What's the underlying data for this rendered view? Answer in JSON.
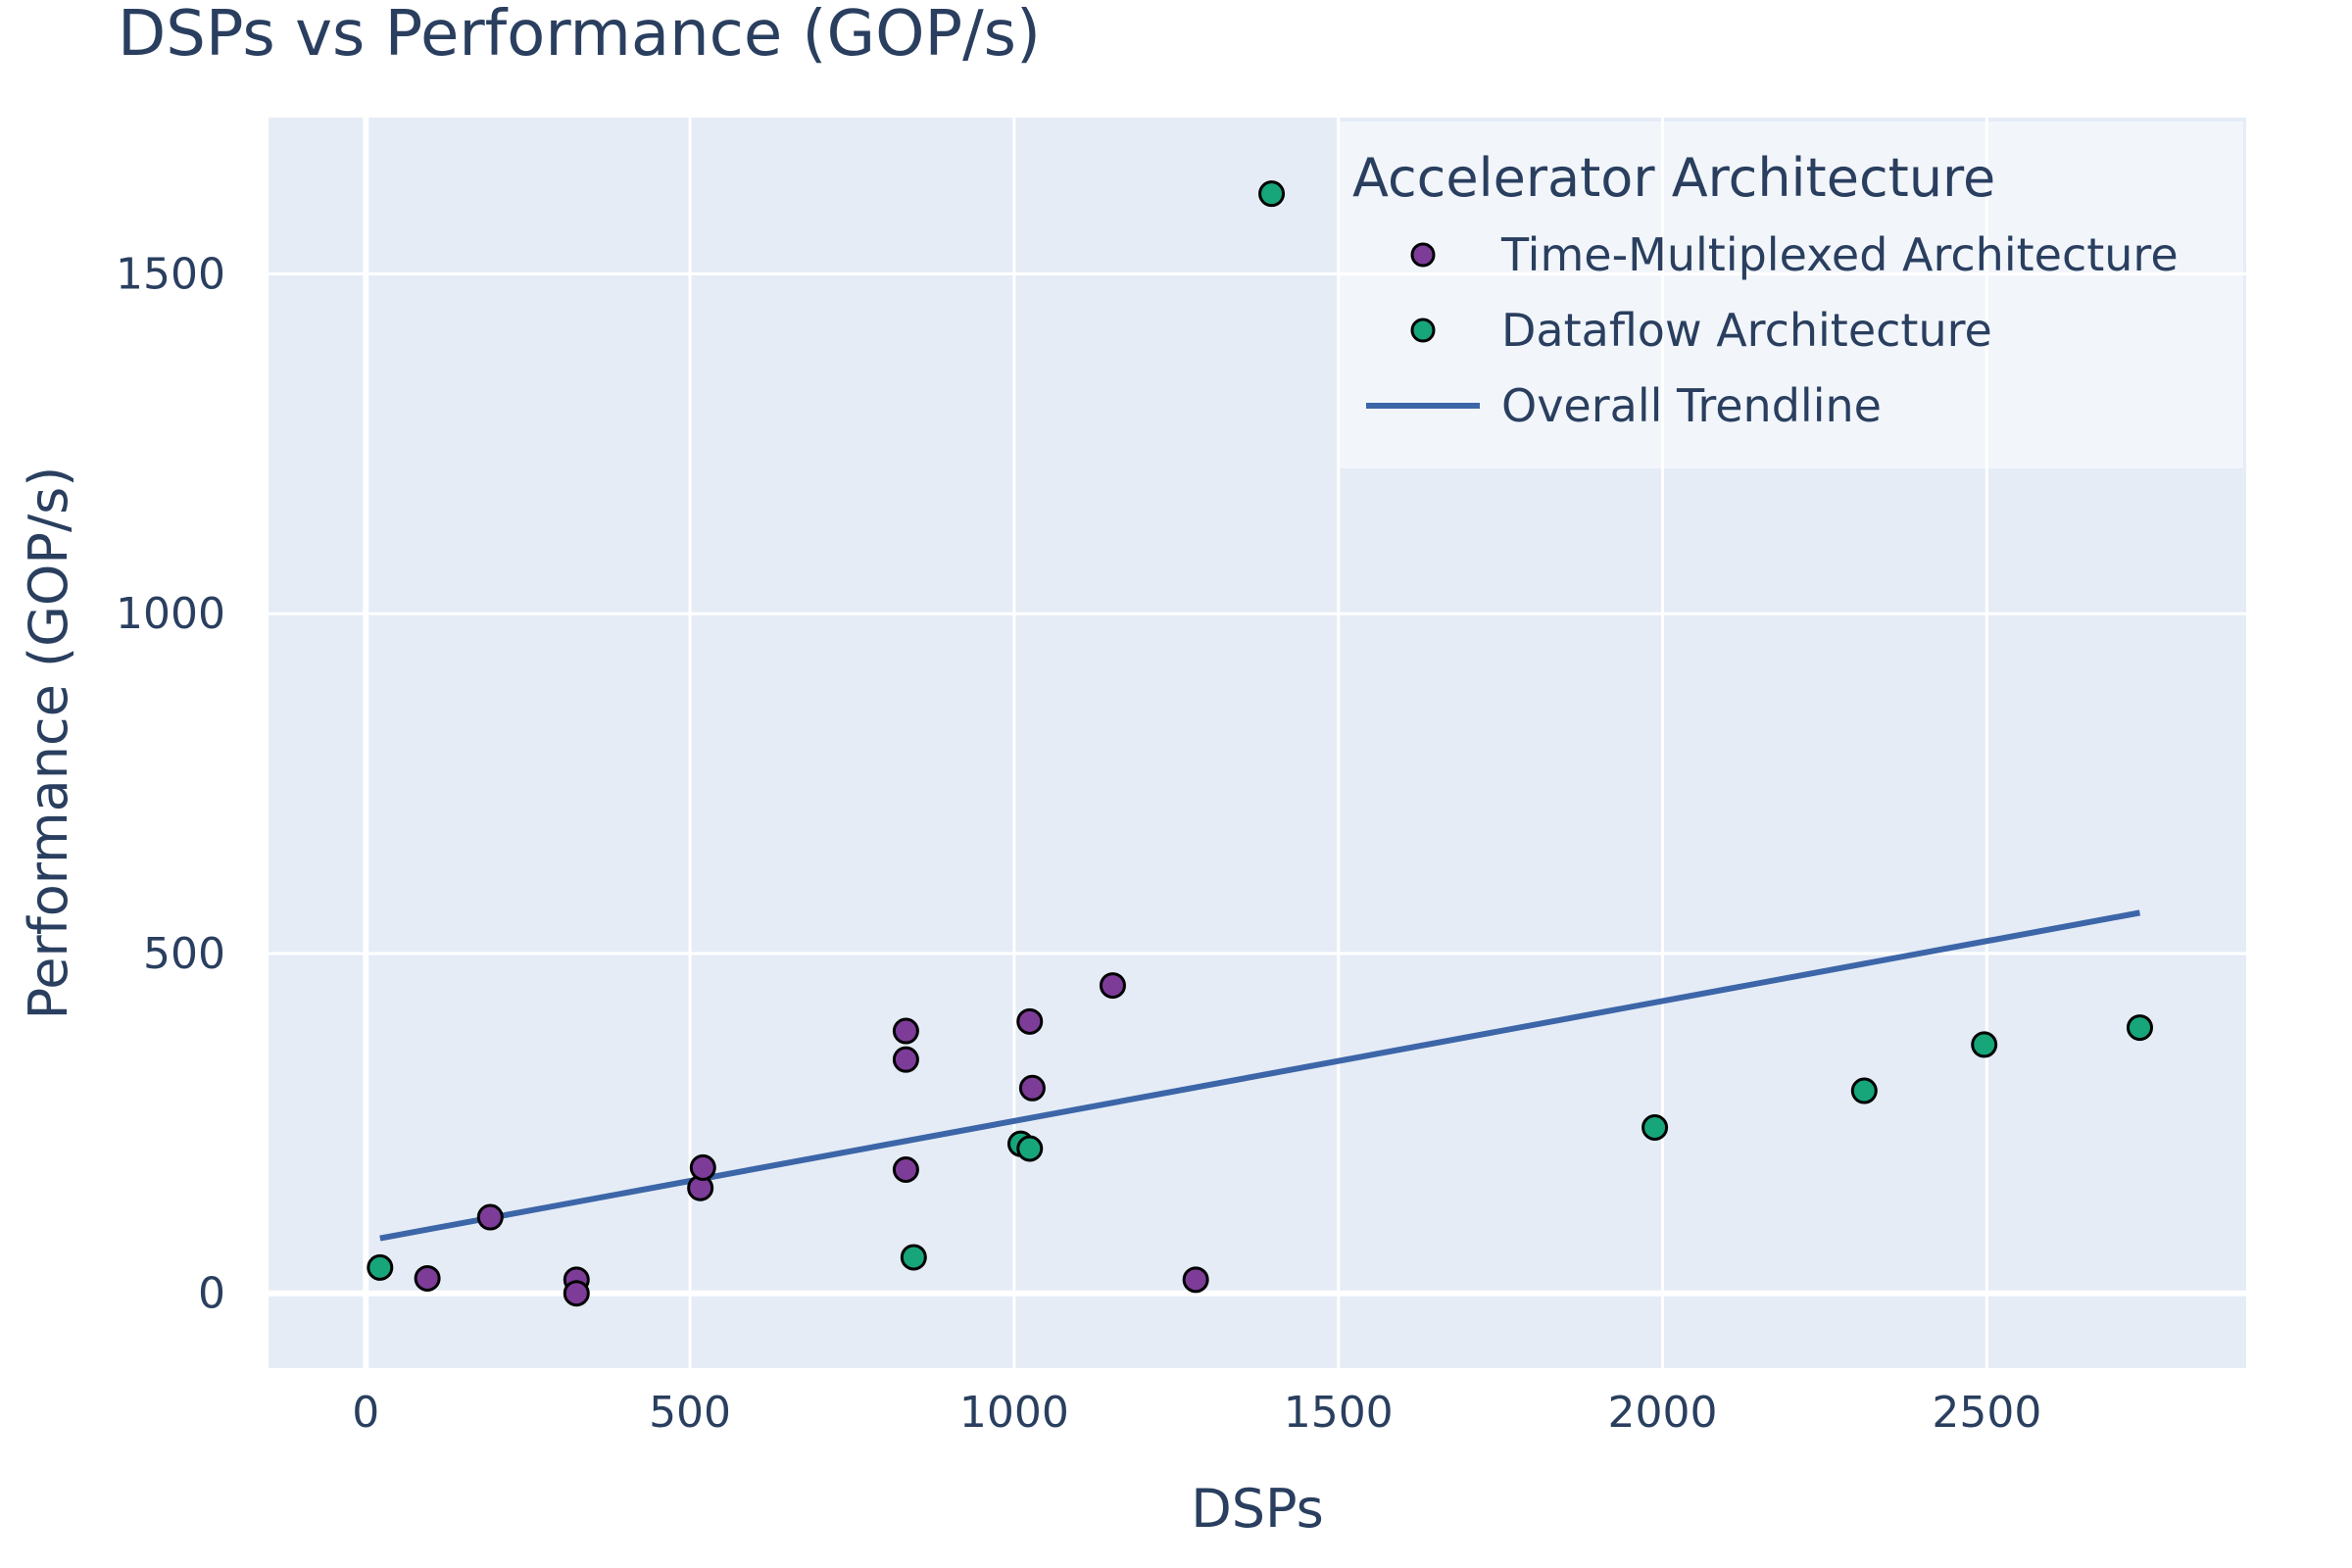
{
  "chart_data": {
    "type": "scatter",
    "title": "DSPs vs Performance (GOP/s)",
    "xlabel": "DSPs",
    "ylabel": "Performance (GOP/s)",
    "xlim": [
      -150,
      2900
    ],
    "ylim": [
      -110,
      1730
    ],
    "xticks": [
      0,
      500,
      1000,
      1500,
      2000,
      2500
    ],
    "yticks": [
      0,
      500,
      1000,
      1500
    ],
    "legend": {
      "title": "Accelerator Architecture",
      "placement": "top-right"
    },
    "series": [
      {
        "name": "Time-Multiplexed Architecture",
        "color": "#7d3c98",
        "points": [
          {
            "x": 95,
            "y": 22
          },
          {
            "x": 192,
            "y": 112
          },
          {
            "x": 325,
            "y": 20
          },
          {
            "x": 325,
            "y": 0
          },
          {
            "x": 516,
            "y": 155
          },
          {
            "x": 520,
            "y": 185
          },
          {
            "x": 833,
            "y": 386
          },
          {
            "x": 833,
            "y": 344
          },
          {
            "x": 833,
            "y": 182
          },
          {
            "x": 1024,
            "y": 400
          },
          {
            "x": 1028,
            "y": 302
          },
          {
            "x": 1152,
            "y": 453
          },
          {
            "x": 1280,
            "y": 20
          }
        ]
      },
      {
        "name": "Dataflow Architecture",
        "color": "#17a57a",
        "points": [
          {
            "x": 22,
            "y": 38
          },
          {
            "x": 845,
            "y": 53
          },
          {
            "x": 1010,
            "y": 220
          },
          {
            "x": 1024,
            "y": 213
          },
          {
            "x": 1397,
            "y": 1618
          },
          {
            "x": 1988,
            "y": 244
          },
          {
            "x": 2311,
            "y": 298
          },
          {
            "x": 2496,
            "y": 366
          },
          {
            "x": 2736,
            "y": 391
          }
        ]
      }
    ],
    "trendline": {
      "name": "Overall Trendline",
      "color": "#3c66a8",
      "x": [
        22,
        2736
      ],
      "y": [
        81,
        560
      ]
    }
  }
}
